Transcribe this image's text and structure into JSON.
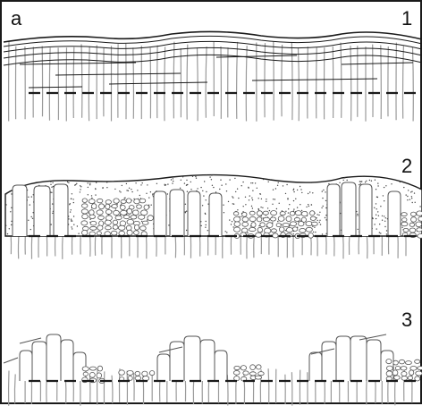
{
  "panel_label": "a",
  "stages": [
    {
      "number": "1",
      "state": "layered-deposit-over-vertical-stems"
    },
    {
      "number": "2",
      "state": "stippled-crust-with-rounded-columns"
    },
    {
      "number": "3",
      "state": "eroded-isolated-column-clusters"
    }
  ],
  "colors": {
    "ink": "#1a1a1a",
    "stem": "#9a9a9a",
    "outline": "#555555",
    "stipple": "#444444"
  }
}
